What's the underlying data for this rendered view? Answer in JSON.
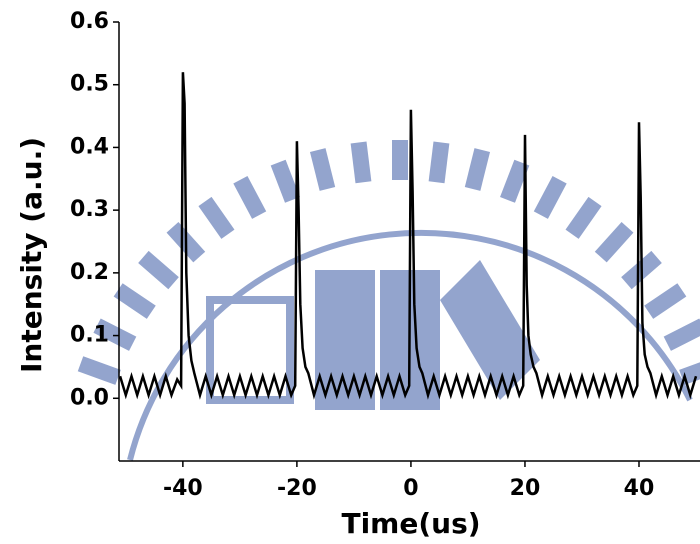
{
  "chart_data": {
    "type": "line",
    "x_label": "Time(us)",
    "y_label": "Intensity (a.u.)",
    "color": "#000000",
    "xlim": [
      -51.2,
      50.7
    ],
    "ylim": [
      -0.1,
      0.6
    ],
    "xticks": [
      -40,
      -20,
      0,
      20,
      40
    ],
    "yticks": [
      {
        "value": 0,
        "label": "0.0"
      },
      {
        "value": 0.1,
        "label": "0.1"
      },
      {
        "value": 0.2,
        "label": "0.2"
      },
      {
        "value": 0.3,
        "label": "0.3"
      },
      {
        "value": 0.4,
        "label": "0.4"
      },
      {
        "value": 0.5,
        "label": "0.5"
      },
      {
        "value": 0.6,
        "label": "0.6"
      }
    ],
    "x": [
      -51,
      -50,
      -49,
      -48,
      -47,
      -46,
      -45,
      -44,
      -43,
      -42,
      -41,
      -40.3,
      -40,
      -39.7,
      -39.4,
      -39,
      -38.5,
      -38,
      -37,
      -36,
      -35,
      -34,
      -33,
      -32,
      -31,
      -30,
      -29,
      -28,
      -27,
      -26,
      -25,
      -24,
      -23,
      -22,
      -21,
      -20.3,
      -20,
      -19.7,
      -19.4,
      -19,
      -18.5,
      -18,
      -17,
      -16,
      -15,
      -14,
      -13,
      -12,
      -11,
      -10,
      -9,
      -8,
      -7,
      -6,
      -5,
      -4,
      -3,
      -2,
      -1,
      -0.3,
      0,
      0.3,
      0.6,
      1,
      1.5,
      2,
      3,
      4,
      5,
      6,
      7,
      8,
      9,
      10,
      11,
      12,
      13,
      14,
      15,
      16,
      17,
      18,
      19,
      19.7,
      20,
      20.3,
      20.6,
      21,
      21.5,
      22,
      23,
      24,
      25,
      26,
      27,
      28,
      29,
      30,
      31,
      32,
      33,
      34,
      35,
      36,
      37,
      38,
      39,
      39.7,
      40,
      40.3,
      40.6,
      41,
      41.5,
      42,
      43,
      44,
      45,
      46,
      47,
      48,
      49,
      50
    ],
    "values": [
      0.035,
      0.005,
      0.035,
      0.005,
      0.035,
      0.005,
      0.035,
      0.005,
      0.035,
      0.005,
      0.03,
      0.02,
      0.52,
      0.47,
      0.2,
      0.1,
      0.06,
      0.04,
      0.005,
      0.035,
      0.005,
      0.035,
      0.005,
      0.035,
      0.005,
      0.035,
      0.005,
      0.035,
      0.005,
      0.035,
      0.005,
      0.035,
      0.005,
      0.035,
      0.005,
      0.02,
      0.41,
      0.3,
      0.15,
      0.08,
      0.05,
      0.04,
      0.005,
      0.035,
      0.005,
      0.035,
      0.005,
      0.035,
      0.005,
      0.035,
      0.005,
      0.035,
      0.005,
      0.035,
      0.005,
      0.035,
      0.005,
      0.035,
      0.005,
      0.02,
      0.46,
      0.33,
      0.15,
      0.08,
      0.05,
      0.04,
      0.005,
      0.035,
      0.005,
      0.035,
      0.005,
      0.035,
      0.005,
      0.035,
      0.005,
      0.035,
      0.005,
      0.035,
      0.005,
      0.035,
      0.005,
      0.035,
      0.005,
      0.02,
      0.42,
      0.18,
      0.1,
      0.07,
      0.05,
      0.04,
      0.005,
      0.035,
      0.005,
      0.035,
      0.005,
      0.035,
      0.005,
      0.035,
      0.005,
      0.035,
      0.005,
      0.035,
      0.005,
      0.035,
      0.005,
      0.035,
      0.005,
      0.02,
      0.44,
      0.32,
      0.12,
      0.07,
      0.05,
      0.04,
      0.005,
      0.035,
      0.005,
      0.035,
      0.005,
      0.035,
      0.005,
      0.035
    ]
  }
}
